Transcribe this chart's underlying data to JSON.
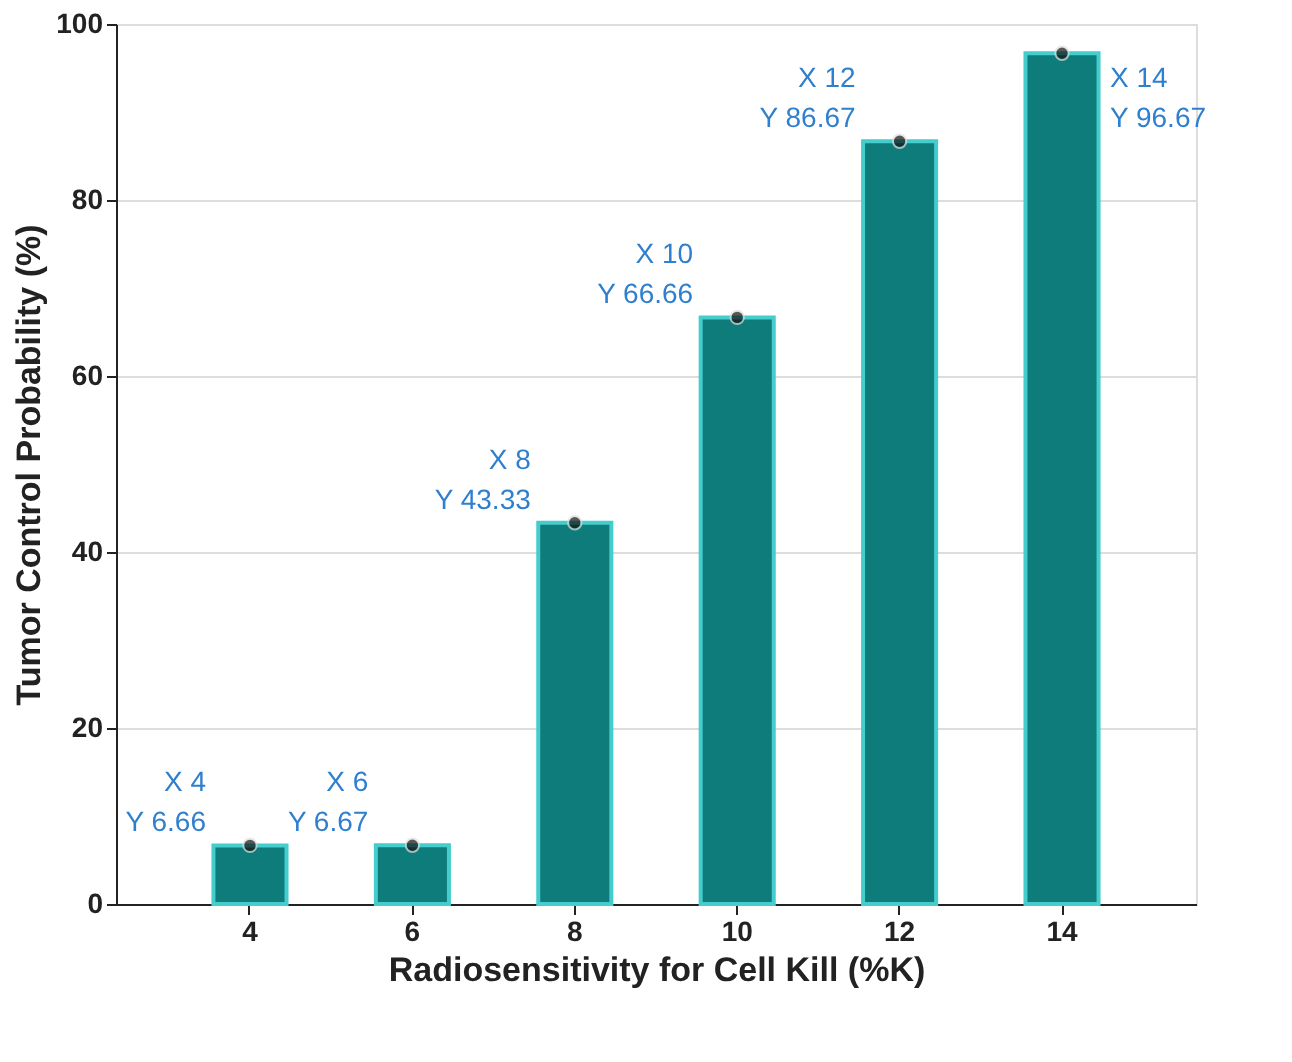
{
  "chart_data": {
    "type": "bar",
    "xlabel": "Radiosensitivity for Cell Kill (%K)",
    "ylabel": "Tumor Control Probability (%)",
    "categories": [
      "4",
      "6",
      "8",
      "10",
      "12",
      "14"
    ],
    "series": [
      {
        "color": "#0e7c7b",
        "values": [
          6.66,
          6.67,
          43.33,
          66.66,
          86.67,
          96.67
        ]
      }
    ],
    "ylim": [
      0,
      100
    ],
    "yticks": [
      0,
      20,
      40,
      60,
      80,
      100
    ],
    "grid": "y",
    "legend": false,
    "marker": "circle",
    "annotations": [
      {
        "text": "X 4\nY 6.66",
        "x": "4",
        "y": 6.66
      },
      {
        "text": "X 6\nY 6.67",
        "x": "6",
        "y": 6.67
      },
      {
        "text": "X 8\nY 43.33",
        "x": "8",
        "y": 43.33
      },
      {
        "text": "X 10\nY 66.66",
        "x": "10",
        "y": 66.66
      },
      {
        "text": "X 12\nY 86.67",
        "x": "12",
        "y": 86.67
      },
      {
        "text": "X 14\nY 96.67",
        "x": "14",
        "y": 96.67
      }
    ]
  }
}
